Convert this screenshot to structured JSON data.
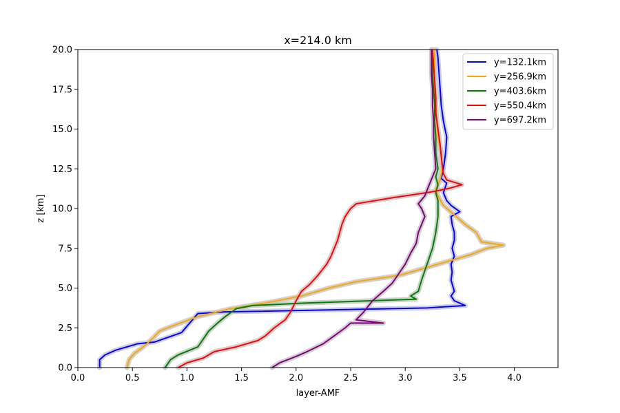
{
  "chart_data": {
    "type": "line",
    "title": "x=214.0 km",
    "xlabel": "layer-AMF",
    "ylabel": "z [km]",
    "xlim": [
      0.0,
      4.4
    ],
    "ylim": [
      0.0,
      20.0
    ],
    "xticks": [
      "0.0",
      "0.5",
      "1.0",
      "1.5",
      "2.0",
      "2.5",
      "3.0",
      "3.5",
      "4.0"
    ],
    "yticks": [
      "0.0",
      "2.5",
      "5.0",
      "7.5",
      "10.0",
      "12.5",
      "15.0",
      "17.5",
      "20.0"
    ],
    "grid": false,
    "legend_position": "top-right",
    "uncertainty_band_color": "#c8c8c8",
    "series": [
      {
        "name": "y=132.1km",
        "color": "#0000ff",
        "points": [
          [
            0.2,
            0.0
          ],
          [
            0.2,
            0.5
          ],
          [
            0.25,
            0.8
          ],
          [
            0.35,
            1.1
          ],
          [
            0.55,
            1.5
          ],
          [
            0.7,
            1.6
          ],
          [
            0.95,
            2.2
          ],
          [
            1.05,
            3.0
          ],
          [
            1.1,
            3.4
          ],
          [
            1.35,
            3.5
          ],
          [
            3.2,
            3.75
          ],
          [
            3.55,
            3.9
          ],
          [
            3.45,
            4.2
          ],
          [
            3.42,
            4.5
          ],
          [
            3.45,
            4.8
          ],
          [
            3.42,
            5.5
          ],
          [
            3.43,
            6.0
          ],
          [
            3.42,
            6.5
          ],
          [
            3.45,
            7.0
          ],
          [
            3.43,
            7.5
          ],
          [
            3.45,
            8.0
          ],
          [
            3.45,
            8.5
          ],
          [
            3.43,
            9.0
          ],
          [
            3.42,
            9.5
          ],
          [
            3.5,
            9.8
          ],
          [
            3.42,
            10.2
          ],
          [
            3.38,
            10.5
          ],
          [
            3.35,
            11.0
          ],
          [
            3.38,
            11.6
          ],
          [
            3.33,
            11.9
          ],
          [
            3.35,
            12.5
          ],
          [
            3.37,
            13.5
          ],
          [
            3.38,
            14.5
          ],
          [
            3.35,
            15.5
          ],
          [
            3.33,
            16.5
          ],
          [
            3.32,
            17.5
          ],
          [
            3.31,
            18.5
          ],
          [
            3.3,
            19.5
          ],
          [
            3.29,
            20.0
          ]
        ]
      },
      {
        "name": "y=256.9km",
        "color": "#ffa500",
        "points": [
          [
            0.45,
            0.0
          ],
          [
            0.47,
            0.5
          ],
          [
            0.52,
            0.9
          ],
          [
            0.6,
            1.3
          ],
          [
            0.68,
            1.8
          ],
          [
            0.75,
            2.3
          ],
          [
            0.9,
            2.7
          ],
          [
            1.1,
            3.2
          ],
          [
            1.4,
            3.7
          ],
          [
            1.75,
            4.1
          ],
          [
            2.05,
            4.5
          ],
          [
            2.3,
            5.0
          ],
          [
            2.55,
            5.4
          ],
          [
            2.75,
            5.6
          ],
          [
            2.95,
            5.8
          ],
          [
            3.15,
            6.2
          ],
          [
            3.4,
            6.7
          ],
          [
            3.6,
            7.1
          ],
          [
            3.75,
            7.5
          ],
          [
            3.9,
            7.7
          ],
          [
            3.7,
            7.9
          ],
          [
            3.65,
            8.5
          ],
          [
            3.55,
            9.0
          ],
          [
            3.45,
            9.6
          ],
          [
            3.35,
            10.2
          ],
          [
            3.3,
            10.8
          ],
          [
            3.28,
            11.2
          ],
          [
            3.32,
            11.8
          ],
          [
            3.34,
            12.5
          ],
          [
            3.33,
            13.5
          ],
          [
            3.3,
            14.5
          ],
          [
            3.29,
            15.5
          ],
          [
            3.28,
            16.5
          ],
          [
            3.27,
            17.5
          ],
          [
            3.27,
            18.5
          ],
          [
            3.27,
            19.5
          ],
          [
            3.27,
            20.0
          ]
        ]
      },
      {
        "name": "y=403.6km",
        "color": "#008000",
        "points": [
          [
            0.8,
            0.0
          ],
          [
            0.85,
            0.5
          ],
          [
            0.92,
            0.8
          ],
          [
            1.1,
            1.3
          ],
          [
            1.15,
            1.8
          ],
          [
            1.2,
            2.3
          ],
          [
            1.28,
            2.8
          ],
          [
            1.35,
            3.2
          ],
          [
            1.45,
            3.7
          ],
          [
            1.6,
            3.9
          ],
          [
            2.05,
            4.05
          ],
          [
            3.1,
            4.3
          ],
          [
            3.05,
            4.5
          ],
          [
            3.12,
            4.8
          ],
          [
            3.15,
            5.5
          ],
          [
            3.2,
            6.5
          ],
          [
            3.25,
            7.5
          ],
          [
            3.28,
            8.5
          ],
          [
            3.3,
            9.5
          ],
          [
            3.3,
            10.5
          ],
          [
            3.28,
            11.0
          ],
          [
            3.3,
            11.5
          ],
          [
            3.28,
            12.0
          ],
          [
            3.3,
            12.5
          ],
          [
            3.28,
            13.5
          ],
          [
            3.28,
            14.5
          ],
          [
            3.27,
            15.5
          ],
          [
            3.27,
            16.5
          ],
          [
            3.26,
            17.5
          ],
          [
            3.25,
            18.5
          ],
          [
            3.25,
            19.5
          ],
          [
            3.25,
            20.0
          ]
        ]
      },
      {
        "name": "y=550.4km",
        "color": "#ff0000",
        "points": [
          [
            0.92,
            0.0
          ],
          [
            1.0,
            0.3
          ],
          [
            1.15,
            0.6
          ],
          [
            1.25,
            1.0
          ],
          [
            1.45,
            1.3
          ],
          [
            1.65,
            1.7
          ],
          [
            1.72,
            2.0
          ],
          [
            1.8,
            2.5
          ],
          [
            1.9,
            3.0
          ],
          [
            1.95,
            3.5
          ],
          [
            2.0,
            4.2
          ],
          [
            2.05,
            4.8
          ],
          [
            2.12,
            5.2
          ],
          [
            2.2,
            5.8
          ],
          [
            2.28,
            6.5
          ],
          [
            2.32,
            7.0
          ],
          [
            2.35,
            7.5
          ],
          [
            2.38,
            8.0
          ],
          [
            2.4,
            8.5
          ],
          [
            2.42,
            9.0
          ],
          [
            2.45,
            9.5
          ],
          [
            2.5,
            10.0
          ],
          [
            2.55,
            10.3
          ],
          [
            2.9,
            10.7
          ],
          [
            3.2,
            11.0
          ],
          [
            3.28,
            11.1
          ],
          [
            3.42,
            11.3
          ],
          [
            3.52,
            11.5
          ],
          [
            3.38,
            11.8
          ],
          [
            3.35,
            12.2
          ],
          [
            3.34,
            12.7
          ],
          [
            3.33,
            13.3
          ],
          [
            3.32,
            14.0
          ],
          [
            3.3,
            15.0
          ],
          [
            3.28,
            16.0
          ],
          [
            3.28,
            17.0
          ],
          [
            3.27,
            18.0
          ],
          [
            3.26,
            19.0
          ],
          [
            3.25,
            20.0
          ]
        ]
      },
      {
        "name": "y=697.2km",
        "color": "#800080",
        "points": [
          [
            1.78,
            0.0
          ],
          [
            1.85,
            0.3
          ],
          [
            2.0,
            0.7
          ],
          [
            2.1,
            1.0
          ],
          [
            2.25,
            1.5
          ],
          [
            2.35,
            2.0
          ],
          [
            2.45,
            2.5
          ],
          [
            2.5,
            2.8
          ],
          [
            2.8,
            2.8
          ],
          [
            2.55,
            3.0
          ],
          [
            2.62,
            3.5
          ],
          [
            2.7,
            4.2
          ],
          [
            2.8,
            4.8
          ],
          [
            2.88,
            5.3
          ],
          [
            2.95,
            6.0
          ],
          [
            3.0,
            6.5
          ],
          [
            3.05,
            7.2
          ],
          [
            3.1,
            7.8
          ],
          [
            3.12,
            8.5
          ],
          [
            3.15,
            9.0
          ],
          [
            3.18,
            9.5
          ],
          [
            3.15,
            10.0
          ],
          [
            3.12,
            10.3
          ],
          [
            3.18,
            10.8
          ],
          [
            3.22,
            11.5
          ],
          [
            3.25,
            12.0
          ],
          [
            3.28,
            12.5
          ],
          [
            3.27,
            13.5
          ],
          [
            3.26,
            14.5
          ],
          [
            3.26,
            15.5
          ],
          [
            3.25,
            16.5
          ],
          [
            3.25,
            17.5
          ],
          [
            3.24,
            18.5
          ],
          [
            3.24,
            19.5
          ],
          [
            3.24,
            20.0
          ]
        ]
      }
    ]
  }
}
